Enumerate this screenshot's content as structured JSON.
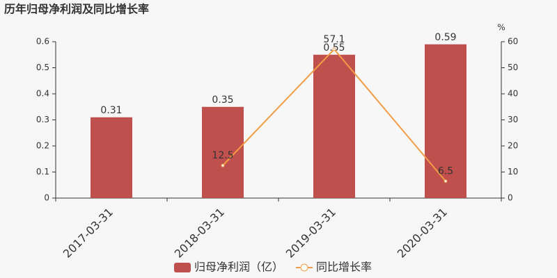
{
  "chart_data": {
    "type": "bar",
    "title": "历年归母净利润及同比增长率",
    "categories": [
      "2017-03-31",
      "2018-03-31",
      "2019-03-31",
      "2020-03-31"
    ],
    "series": [
      {
        "name": "归母净利润（亿）",
        "color": "#c0504d",
        "type": "bar",
        "values": [
          0.31,
          0.35,
          0.55,
          0.59
        ]
      },
      {
        "name": "同比增长率",
        "color": "#f39c45",
        "type": "line",
        "axis": "y2",
        "values": [
          null,
          12.5,
          57.1,
          6.5
        ]
      }
    ],
    "ylim": [
      0,
      0.6
    ],
    "yticks": [
      0,
      0.1,
      0.2,
      0.3,
      0.4,
      0.5,
      0.6
    ],
    "y2lim": [
      0,
      60
    ],
    "y2ticks": [
      0,
      10,
      20,
      30,
      40,
      50,
      60
    ],
    "y2label": "%",
    "grid": false,
    "legend": "bottom"
  }
}
